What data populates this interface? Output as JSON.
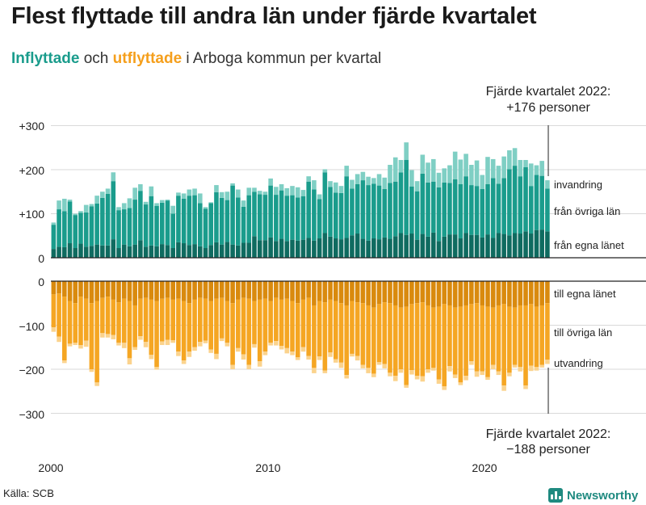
{
  "title": "Flest flyttade till andra län under fjärde kvartalet",
  "subtitle": {
    "in_word": "Inflyttade",
    "and_word": " och ",
    "out_word": "utflyttade",
    "rest": " i Arboga kommun per kvartal"
  },
  "annotations": {
    "top_line1": "Fjärde kvartalet 2022:",
    "top_line2": "+176 personer",
    "bottom_line1": "Fjärde kvartalet 2022:",
    "bottom_line2": "−188 personer"
  },
  "source": "Källa: SCB",
  "brand": "Newsworthy",
  "colors": {
    "in_egna": "#0f6b60",
    "in_ovriga": "#1a9c8c",
    "in_invandring": "#7fcfc4",
    "out_egna": "#d98a0e",
    "out_ovriga": "#f5a623",
    "out_utvandring": "#fbd38d",
    "grid": "#d9d9d9",
    "axis": "#222222"
  },
  "chart_data": {
    "type": "bar",
    "stacked": true,
    "title": "Flest flyttade till andra län under fjärde kvartalet",
    "x_axis": {
      "type": "quarterly",
      "start": "2000 Q1",
      "end": "2022 Q4",
      "tick_labels": [
        "2000",
        "2010",
        "2020"
      ]
    },
    "top_panel": {
      "ylim": [
        0,
        300
      ],
      "tick_labels": [
        "0",
        "+100",
        "+200",
        "+300"
      ],
      "series": [
        {
          "name": "från egna länet",
          "values": [
            20,
            25,
            24,
            33,
            22,
            32,
            25,
            27,
            30,
            28,
            28,
            42,
            22,
            30,
            26,
            30,
            40,
            25,
            28,
            26,
            31,
            29,
            22,
            35,
            33,
            29,
            31,
            26,
            22,
            29,
            35,
            30,
            36,
            30,
            28,
            34,
            34,
            49,
            40,
            40,
            46,
            38,
            43,
            38,
            41,
            39,
            41,
            45,
            39,
            44,
            56,
            48,
            44,
            42,
            45,
            51,
            55,
            43,
            39,
            44,
            42,
            46,
            43,
            49,
            56,
            52,
            55,
            41,
            54,
            48,
            57,
            38,
            48,
            53,
            53,
            44,
            56,
            52,
            52,
            46,
            53,
            45,
            56,
            54,
            51,
            56,
            55,
            60,
            55,
            63,
            64,
            60
          ]
        },
        {
          "name": "från övriga län",
          "values": [
            55,
            85,
            82,
            95,
            75,
            70,
            78,
            90,
            93,
            108,
            117,
            132,
            86,
            80,
            87,
            102,
            112,
            96,
            112,
            92,
            94,
            101,
            78,
            106,
            101,
            112,
            111,
            98,
            89,
            95,
            114,
            106,
            95,
            134,
            109,
            82,
            108,
            101,
            104,
            103,
            118,
            105,
            110,
            103,
            101,
            98,
            99,
            128,
            116,
            89,
            138,
            113,
            104,
            105,
            140,
            106,
            112,
            133,
            126,
            124,
            122,
            110,
            127,
            124,
            138,
            170,
            107,
            110,
            137,
            123,
            116,
            122,
            123,
            117,
            125,
            123,
            129,
            113,
            111,
            110,
            114,
            136,
            112,
            127,
            150,
            153,
            130,
            146,
            108,
            125,
            122,
            97
          ]
        },
        {
          "name": "invandring",
          "values": [
            5,
            20,
            28,
            4,
            3,
            4,
            17,
            5,
            18,
            14,
            12,
            20,
            7,
            14,
            22,
            27,
            15,
            6,
            22,
            6,
            6,
            2,
            18,
            7,
            12,
            14,
            15,
            22,
            4,
            2,
            16,
            13,
            19,
            5,
            18,
            14,
            17,
            9,
            8,
            7,
            16,
            18,
            14,
            17,
            21,
            23,
            14,
            12,
            21,
            11,
            7,
            13,
            23,
            16,
            24,
            20,
            23,
            19,
            19,
            13,
            26,
            26,
            41,
            55,
            28,
            40,
            37,
            23,
            43,
            45,
            51,
            33,
            32,
            40,
            63,
            56,
            51,
            46,
            58,
            32,
            62,
            43,
            41,
            49,
            43,
            40,
            37,
            16,
            51,
            22,
            34,
            19
          ]
        }
      ]
    },
    "bottom_panel": {
      "ylim": [
        -300,
        0
      ],
      "tick_labels": [
        "0",
        "−100",
        "−200",
        "−300"
      ],
      "series": [
        {
          "name": "till egna länet",
          "values": [
            -30,
            -28,
            -35,
            -45,
            -50,
            -35,
            -40,
            -50,
            -45,
            -38,
            -35,
            -42,
            -48,
            -40,
            -45,
            -55,
            -40,
            -38,
            -42,
            -45,
            -40,
            -38,
            -42,
            -40,
            -45,
            -50,
            -42,
            -38,
            -40,
            -45,
            -40,
            -38,
            -45,
            -50,
            -42,
            -38,
            -40,
            -45,
            -42,
            -40,
            -45,
            -38,
            -42,
            -40,
            -45,
            -50,
            -42,
            -38,
            -55,
            -45,
            -48,
            -42,
            -45,
            -50,
            -55,
            -45,
            -48,
            -50,
            -55,
            -60,
            -52,
            -48,
            -50,
            -55,
            -60,
            -58,
            -52,
            -50,
            -48,
            -55,
            -60,
            -58,
            -52,
            -55,
            -60,
            -58,
            -55,
            -52,
            -50,
            -55,
            -58,
            -60,
            -55,
            -52,
            -58,
            -60,
            -55,
            -55,
            -52,
            -58,
            -55,
            -50
          ]
        },
        {
          "name": "till övriga län",
          "values": [
            -75,
            -98,
            -145,
            -97,
            -90,
            -110,
            -95,
            -150,
            -185,
            -80,
            -85,
            -80,
            -92,
            -100,
            -130,
            -95,
            -85,
            -100,
            -125,
            -150,
            -97,
            -95,
            -92,
            -120,
            -135,
            -110,
            -108,
            -100,
            -95,
            -110,
            -125,
            -92,
            -95,
            -140,
            -110,
            -128,
            -150,
            -98,
            -140,
            -120,
            -95,
            -98,
            -105,
            -112,
            -115,
            -123,
            -108,
            -132,
            -142,
            -126,
            -155,
            -120,
            -132,
            -135,
            -158,
            -120,
            -122,
            -140,
            -142,
            -150,
            -132,
            -140,
            -158,
            -160,
            -140,
            -178,
            -150,
            -165,
            -168,
            -145,
            -137,
            -165,
            -187,
            -138,
            -152,
            -172,
            -160,
            -130,
            -155,
            -150,
            -160,
            -130,
            -150,
            -185,
            -150,
            -130,
            -140,
            -182,
            -140,
            -137,
            -135,
            -128
          ]
        },
        {
          "name": "utvandring",
          "values": [
            -10,
            -12,
            -6,
            -6,
            -5,
            -8,
            -14,
            -6,
            -8,
            -10,
            -8,
            -10,
            -6,
            -12,
            -14,
            -6,
            -8,
            -12,
            -10,
            -6,
            -8,
            -12,
            -6,
            -10,
            -8,
            -12,
            -8,
            -10,
            -6,
            -8,
            -12,
            -6,
            -8,
            -10,
            -8,
            -12,
            -10,
            -8,
            -12,
            -8,
            -6,
            -10,
            -8,
            -12,
            -8,
            -6,
            -10,
            -8,
            -12,
            -8,
            -6,
            -10,
            -8,
            -12,
            -8,
            -6,
            -10,
            -8,
            -12,
            -8,
            -6,
            -10,
            -8,
            -12,
            -8,
            -6,
            -10,
            -8,
            -12,
            -8,
            -6,
            -10,
            -8,
            -12,
            -8,
            -6,
            -10,
            -8,
            -12,
            -8,
            -6,
            -10,
            -8,
            -12,
            -8,
            -6,
            -10,
            -8,
            -12,
            -8,
            -6,
            -10
          ]
        }
      ]
    },
    "series_labels": {
      "invandring": "invandring",
      "fran_ovriga": "från övriga län",
      "fran_egna": "från egna länet",
      "till_egna": "till egna länet",
      "till_ovriga": "till övriga län",
      "utvandring": "utvandring"
    }
  }
}
